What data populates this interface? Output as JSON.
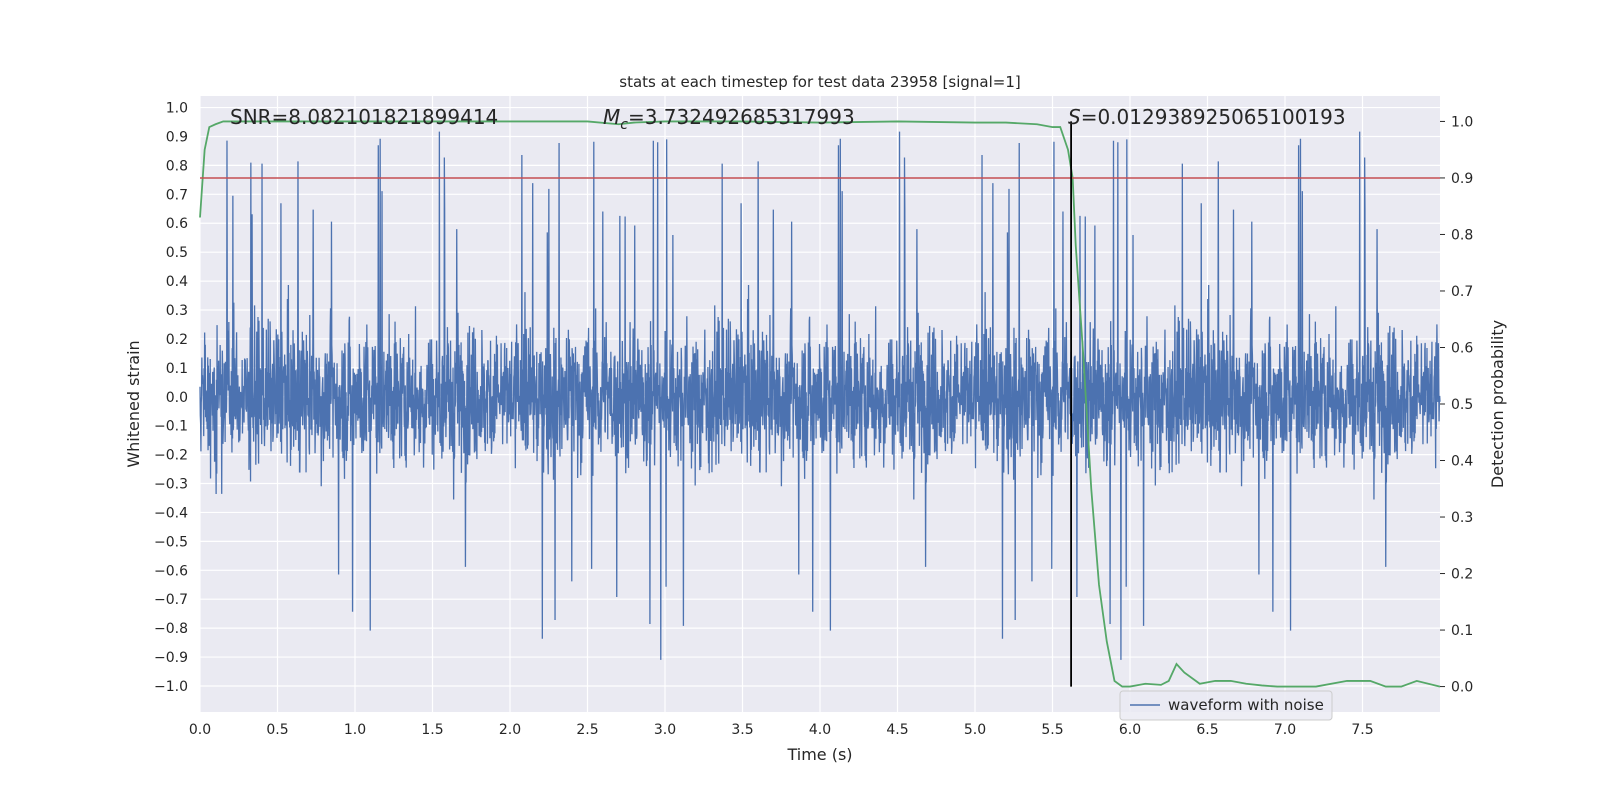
{
  "chart_data": {
    "type": "line",
    "title": "stats at each timestep for test data 23958 [signal=1]",
    "xlabel": "Time (s)",
    "ylabel": "Whitened strain",
    "y2label": "Detection probability",
    "xlim": [
      0,
      8
    ],
    "ylim": [
      -1.09,
      1.04
    ],
    "y2lim": [
      -0.045,
      1.045
    ],
    "xticks": [
      "0.0",
      "0.5",
      "1.0",
      "1.5",
      "2.0",
      "2.5",
      "3.0",
      "3.5",
      "4.0",
      "4.5",
      "5.0",
      "5.5",
      "6.0",
      "6.5",
      "7.0",
      "7.5"
    ],
    "yticks": [
      "1.0",
      "0.9",
      "0.8",
      "0.7",
      "0.6",
      "0.5",
      "0.4",
      "0.3",
      "0.2",
      "0.1",
      "0.0",
      "-0.1",
      "-0.2",
      "-0.3",
      "-0.4",
      "-0.5",
      "-0.6",
      "-0.7",
      "-0.8",
      "-0.9",
      "-1.0"
    ],
    "y2ticks": [
      "1.0",
      "0.9",
      "0.8",
      "0.7",
      "0.6",
      "0.5",
      "0.4",
      "0.3",
      "0.2",
      "0.1",
      "0.0"
    ],
    "grid": true,
    "legend": {
      "position": "bottom-right",
      "entries": [
        "waveform with noise"
      ]
    },
    "annotations": {
      "snr": "SNR=8.082101821899414",
      "mc_symbol": "M",
      "mc_sub": "c",
      "mc_value": "=3.732492685317993",
      "s_symbol": "S",
      "s_value": "=0.012938925065100193"
    },
    "threshold": {
      "y2": 0.9,
      "color": "#c44e52"
    },
    "marker_line": {
      "x": 5.62,
      "y2_from": 0.0,
      "y2_to": 1.0,
      "color": "#000000"
    },
    "series": [
      {
        "name": "waveform with noise",
        "color": "#4c72b0",
        "axis": "left",
        "sample_count": 4000,
        "seed": 23958,
        "note": "dense whitened strain noise; body roughly +/-0.35, spikes to about +/-0.95"
      },
      {
        "axis": "right",
        "color": "#55a868",
        "x": [
          0.0,
          0.03,
          0.06,
          0.1,
          0.15,
          0.2,
          0.3,
          0.5,
          1.0,
          1.5,
          2.0,
          2.5,
          2.7,
          2.8,
          3.0,
          3.5,
          4.0,
          4.5,
          5.0,
          5.2,
          5.4,
          5.5,
          5.55,
          5.6,
          5.63,
          5.65,
          5.7,
          5.75,
          5.8,
          5.85,
          5.9,
          5.95,
          6.0,
          6.1,
          6.2,
          6.25,
          6.3,
          6.35,
          6.45,
          6.55,
          6.65,
          6.75,
          6.85,
          6.95,
          7.05,
          7.2,
          7.4,
          7.55,
          7.65,
          7.75,
          7.85,
          8.0
        ],
        "values": [
          0.83,
          0.95,
          0.99,
          0.995,
          1.0,
          1.0,
          1.0,
          1.0,
          1.0,
          1.0,
          1.0,
          1.0,
          0.995,
          0.998,
          1.0,
          1.0,
          0.998,
          1.0,
          0.998,
          0.998,
          0.995,
          0.99,
          0.99,
          0.95,
          0.9,
          0.78,
          0.58,
          0.35,
          0.18,
          0.08,
          0.01,
          0.0,
          0.0,
          0.005,
          0.003,
          0.01,
          0.04,
          0.025,
          0.005,
          0.01,
          0.01,
          0.005,
          0.002,
          0.0,
          0.0,
          0.0,
          0.01,
          0.01,
          0.0,
          0.0,
          0.01,
          0.0
        ]
      }
    ]
  }
}
